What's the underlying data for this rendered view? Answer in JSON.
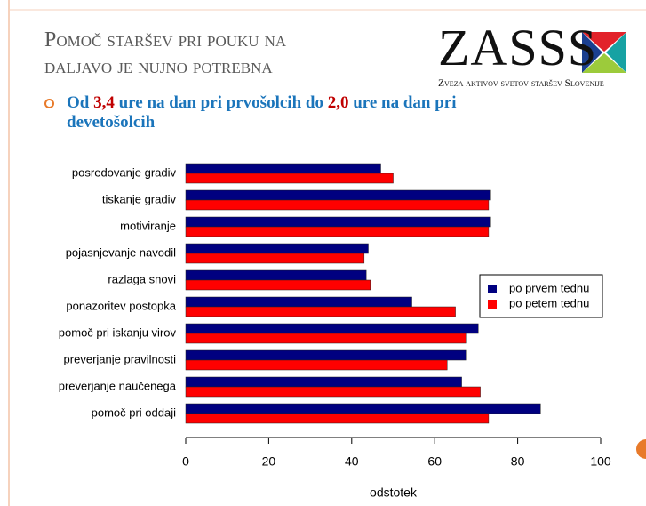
{
  "slide": {
    "title_lines": [
      "Pomoč staršev pri pouku na",
      "daljavo je nujno potrebna"
    ],
    "logo_name": "ZASSS",
    "logo_subtitle": "Zveza aktivov svetov staršev Slovenije",
    "bullet": [
      "Od ",
      "3,4",
      " ure na dan pri prvošolcih do ",
      "2,0",
      " ure na dan pri devetošolcih"
    ]
  },
  "chart_data": {
    "type": "barh",
    "xlabel": "odstotek",
    "categories": [
      "posredovanje gradiv",
      "tiskanje gradiv",
      "motiviranje",
      "pojasnjevanje navodil",
      "razlaga snovi",
      "ponazoritev postopka",
      "pomoč pri iskanju virov",
      "preverjanje pravilnosti",
      "preverjanje naučenega",
      "pomoč pri oddaji"
    ],
    "series": [
      {
        "name": "po prvem tednu",
        "color": "#000080",
        "values": [
          47,
          73.5,
          73.5,
          44,
          43.5,
          54.5,
          70.5,
          67.5,
          66.5,
          85.5
        ]
      },
      {
        "name": "po petem tednu",
        "color": "#ff0000",
        "values": [
          50,
          73,
          73,
          43,
          44.5,
          65,
          67.5,
          63,
          71,
          73
        ]
      }
    ],
    "xlim": [
      0,
      100
    ],
    "xticks": [
      0,
      20,
      40,
      60,
      80,
      100
    ],
    "grid": false,
    "legend": "right"
  }
}
